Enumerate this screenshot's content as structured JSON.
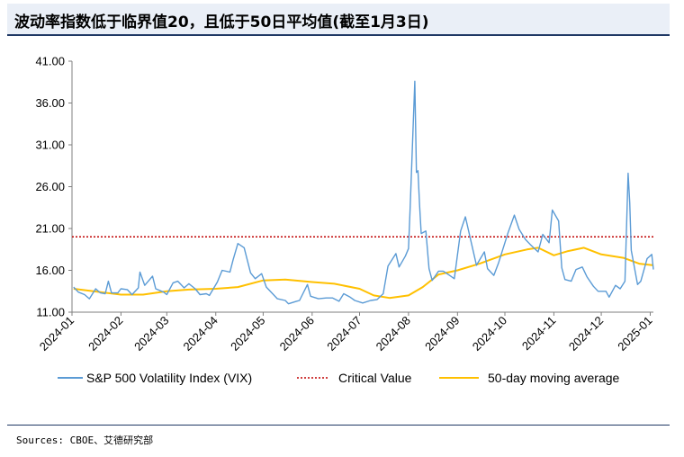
{
  "title": "波动率指数低于临界值20，且低于50日平均值(截至1月3日)",
  "source": "Sources: CBOE、艾德研究部",
  "chart_data": {
    "type": "line",
    "title": "波动率指数低于临界值20，且低于50日平均值(截至1月3日)",
    "xlabel": "",
    "ylabel": "",
    "ylim": [
      11.0,
      41.0
    ],
    "yticks": [
      "11.00",
      "16.00",
      "21.00",
      "26.00",
      "31.00",
      "36.00",
      "41.00"
    ],
    "xticks": [
      "2024-01",
      "2024-02",
      "2024-03",
      "2024-04",
      "2024-05",
      "2024-06",
      "2024-07",
      "2024-08",
      "2024-09",
      "2024-10",
      "2024-11",
      "2024-12",
      "2025-01"
    ],
    "xlim": [
      "2024-01-01",
      "2025-01-03"
    ],
    "grid": false,
    "legend_position": "bottom",
    "series": [
      {
        "name": "S&P 500 Volatility Index (VIX)",
        "color": "#5b9bd5",
        "style": "solid",
        "points": [
          [
            "2024-01-02",
            14.0
          ],
          [
            "2024-01-05",
            13.4
          ],
          [
            "2024-01-09",
            13.1
          ],
          [
            "2024-01-12",
            12.6
          ],
          [
            "2024-01-16",
            13.8
          ],
          [
            "2024-01-19",
            13.3
          ],
          [
            "2024-01-22",
            13.2
          ],
          [
            "2024-01-24",
            14.7
          ],
          [
            "2024-01-26",
            13.3
          ],
          [
            "2024-01-30",
            13.3
          ],
          [
            "2024-02-01",
            13.8
          ],
          [
            "2024-02-05",
            13.7
          ],
          [
            "2024-02-08",
            13.1
          ],
          [
            "2024-02-12",
            13.9
          ],
          [
            "2024-02-13",
            15.8
          ],
          [
            "2024-02-16",
            14.2
          ],
          [
            "2024-02-21",
            15.3
          ],
          [
            "2024-02-23",
            13.8
          ],
          [
            "2024-02-28",
            13.4
          ],
          [
            "2024-03-01",
            13.1
          ],
          [
            "2024-03-05",
            14.5
          ],
          [
            "2024-03-08",
            14.7
          ],
          [
            "2024-03-12",
            13.9
          ],
          [
            "2024-03-15",
            14.4
          ],
          [
            "2024-03-19",
            13.8
          ],
          [
            "2024-03-22",
            13.1
          ],
          [
            "2024-03-26",
            13.2
          ],
          [
            "2024-03-28",
            13.0
          ],
          [
            "2024-04-02",
            14.6
          ],
          [
            "2024-04-05",
            16.0
          ],
          [
            "2024-04-10",
            15.8
          ],
          [
            "2024-04-12",
            17.3
          ],
          [
            "2024-04-15",
            19.2
          ],
          [
            "2024-04-19",
            18.7
          ],
          [
            "2024-04-23",
            15.7
          ],
          [
            "2024-04-26",
            15.0
          ],
          [
            "2024-04-30",
            15.6
          ],
          [
            "2024-05-03",
            14.0
          ],
          [
            "2024-05-07",
            13.2
          ],
          [
            "2024-05-10",
            12.6
          ],
          [
            "2024-05-15",
            12.4
          ],
          [
            "2024-05-17",
            12.0
          ],
          [
            "2024-05-22",
            12.3
          ],
          [
            "2024-05-24",
            12.4
          ],
          [
            "2024-05-29",
            14.3
          ],
          [
            "2024-05-31",
            12.9
          ],
          [
            "2024-06-05",
            12.6
          ],
          [
            "2024-06-10",
            12.7
          ],
          [
            "2024-06-14",
            12.7
          ],
          [
            "2024-06-18",
            12.3
          ],
          [
            "2024-06-21",
            13.2
          ],
          [
            "2024-06-25",
            12.8
          ],
          [
            "2024-06-28",
            12.4
          ],
          [
            "2024-07-03",
            12.1
          ],
          [
            "2024-07-08",
            12.4
          ],
          [
            "2024-07-12",
            12.5
          ],
          [
            "2024-07-16",
            13.2
          ],
          [
            "2024-07-19",
            16.5
          ],
          [
            "2024-07-24",
            18.0
          ],
          [
            "2024-07-26",
            16.4
          ],
          [
            "2024-07-30",
            17.7
          ],
          [
            "2024-08-01",
            18.6
          ],
          [
            "2024-08-02",
            23.4
          ],
          [
            "2024-08-05",
            38.6
          ],
          [
            "2024-08-06",
            27.7
          ],
          [
            "2024-08-07",
            27.9
          ],
          [
            "2024-08-08",
            23.8
          ],
          [
            "2024-08-09",
            20.4
          ],
          [
            "2024-08-12",
            20.7
          ],
          [
            "2024-08-14",
            16.2
          ],
          [
            "2024-08-16",
            14.8
          ],
          [
            "2024-08-20",
            15.9
          ],
          [
            "2024-08-23",
            15.9
          ],
          [
            "2024-08-27",
            15.4
          ],
          [
            "2024-08-30",
            15.0
          ],
          [
            "2024-09-03",
            20.7
          ],
          [
            "2024-09-06",
            22.4
          ],
          [
            "2024-09-10",
            19.1
          ],
          [
            "2024-09-13",
            16.6
          ],
          [
            "2024-09-18",
            18.2
          ],
          [
            "2024-09-20",
            16.2
          ],
          [
            "2024-09-24",
            15.4
          ],
          [
            "2024-09-27",
            16.9
          ],
          [
            "2024-10-01",
            19.3
          ],
          [
            "2024-10-03",
            20.5
          ],
          [
            "2024-10-07",
            22.6
          ],
          [
            "2024-10-10",
            20.9
          ],
          [
            "2024-10-14",
            19.7
          ],
          [
            "2024-10-17",
            19.1
          ],
          [
            "2024-10-22",
            18.2
          ],
          [
            "2024-10-25",
            20.3
          ],
          [
            "2024-10-29",
            19.3
          ],
          [
            "2024-10-31",
            23.2
          ],
          [
            "2024-11-04",
            21.9
          ],
          [
            "2024-11-06",
            16.3
          ],
          [
            "2024-11-08",
            14.9
          ],
          [
            "2024-11-12",
            14.7
          ],
          [
            "2024-11-15",
            16.1
          ],
          [
            "2024-11-19",
            16.4
          ],
          [
            "2024-11-22",
            15.2
          ],
          [
            "2024-11-26",
            14.1
          ],
          [
            "2024-11-29",
            13.5
          ],
          [
            "2024-12-04",
            13.5
          ],
          [
            "2024-12-06",
            12.8
          ],
          [
            "2024-12-10",
            14.2
          ],
          [
            "2024-12-13",
            13.8
          ],
          [
            "2024-12-16",
            14.7
          ],
          [
            "2024-12-18",
            27.6
          ],
          [
            "2024-12-19",
            24.1
          ],
          [
            "2024-12-20",
            18.4
          ],
          [
            "2024-12-24",
            14.3
          ],
          [
            "2024-12-26",
            14.7
          ],
          [
            "2024-12-30",
            17.4
          ],
          [
            "2025-01-02",
            17.9
          ],
          [
            "2025-01-03",
            16.1
          ]
        ]
      },
      {
        "name": "Critical Value",
        "color": "#c00000",
        "style": "dotted",
        "points": [
          [
            "2024-01-01",
            20.0
          ],
          [
            "2025-01-03",
            20.0
          ]
        ]
      },
      {
        "name": "50-day moving average",
        "color": "#ffc000",
        "style": "solid",
        "points": [
          [
            "2024-01-02",
            13.8
          ],
          [
            "2024-02-01",
            13.1
          ],
          [
            "2024-02-15",
            13.1
          ],
          [
            "2024-03-01",
            13.5
          ],
          [
            "2024-03-15",
            13.7
          ],
          [
            "2024-04-01",
            13.8
          ],
          [
            "2024-04-15",
            14.0
          ],
          [
            "2024-05-01",
            14.8
          ],
          [
            "2024-05-15",
            14.9
          ],
          [
            "2024-06-01",
            14.6
          ],
          [
            "2024-06-15",
            14.4
          ],
          [
            "2024-07-01",
            13.8
          ],
          [
            "2024-07-10",
            13.0
          ],
          [
            "2024-07-20",
            12.7
          ],
          [
            "2024-08-01",
            13.0
          ],
          [
            "2024-08-10",
            14.0
          ],
          [
            "2024-08-20",
            15.5
          ],
          [
            "2024-09-01",
            16.0
          ],
          [
            "2024-09-15",
            16.8
          ],
          [
            "2024-10-01",
            17.9
          ],
          [
            "2024-10-15",
            18.5
          ],
          [
            "2024-10-22",
            18.7
          ],
          [
            "2024-11-01",
            17.8
          ],
          [
            "2024-11-10",
            18.3
          ],
          [
            "2024-11-20",
            18.7
          ],
          [
            "2024-12-01",
            17.9
          ],
          [
            "2024-12-15",
            17.5
          ],
          [
            "2024-12-25",
            16.8
          ],
          [
            "2025-01-03",
            16.6
          ]
        ]
      }
    ]
  }
}
